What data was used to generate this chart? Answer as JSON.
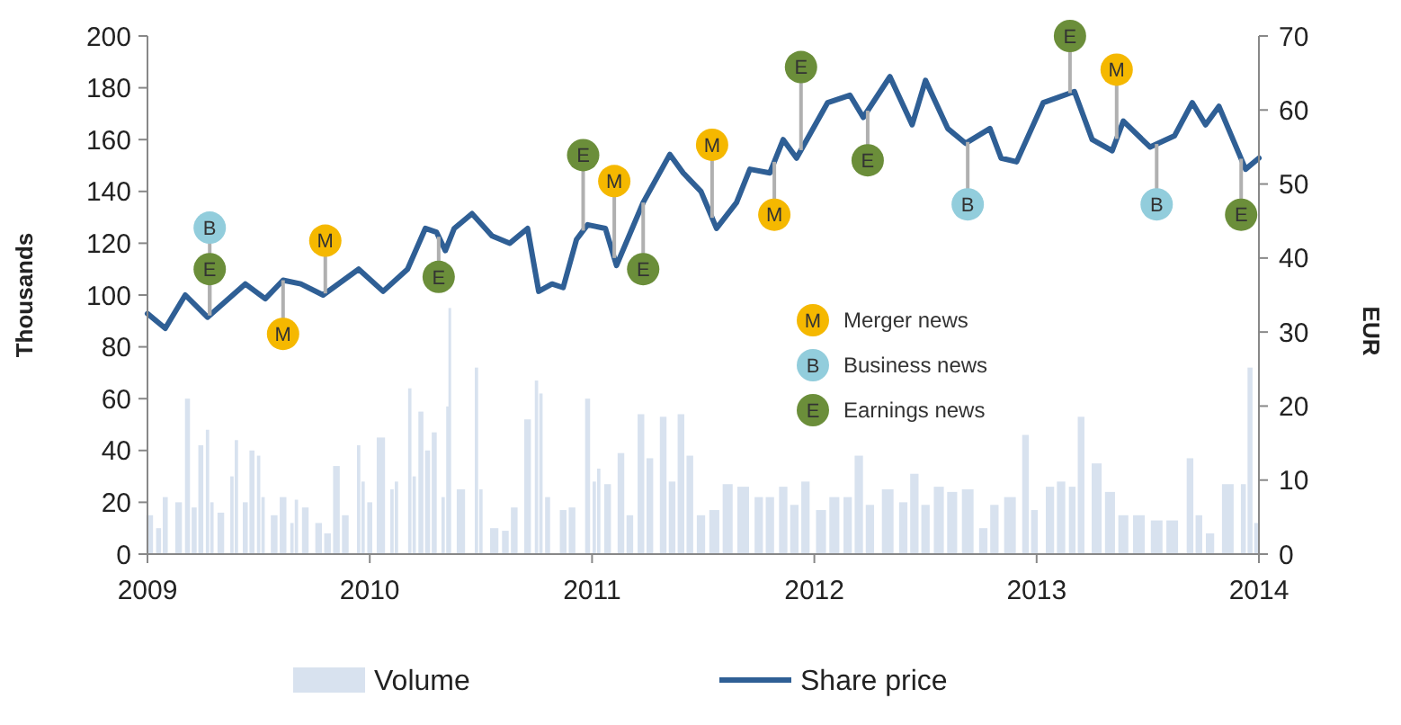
{
  "chart_data": {
    "type": "line",
    "ylabel": "Thousands",
    "y2label": "EUR",
    "xlim": [
      2009,
      2014
    ],
    "xticks": [
      2009,
      2010,
      2011,
      2012,
      2013,
      2014
    ],
    "ylim": [
      0,
      200
    ],
    "yticks": [
      0,
      20,
      40,
      60,
      80,
      100,
      120,
      140,
      160,
      180,
      200
    ],
    "y2lim": [
      0,
      70
    ],
    "y2ticks": [
      0,
      10,
      20,
      30,
      40,
      50,
      60,
      70
    ],
    "legend": "bottom",
    "annotations": [
      {
        "text": "B",
        "x": 2009.28,
        "y": 126
      },
      {
        "text": "E",
        "x": 2009.28,
        "y": 110
      },
      {
        "text": "M",
        "x": 2009.61,
        "y": 85
      },
      {
        "text": "M",
        "x": 2009.8,
        "y": 121
      },
      {
        "text": "E",
        "x": 2010.31,
        "y": 107
      },
      {
        "text": "E",
        "x": 2010.96,
        "y": 154
      },
      {
        "text": "M",
        "x": 2011.1,
        "y": 144
      },
      {
        "text": "E",
        "x": 2011.23,
        "y": 110
      },
      {
        "text": "M",
        "x": 2011.54,
        "y": 158
      },
      {
        "text": "M",
        "x": 2011.82,
        "y": 131
      },
      {
        "text": "E",
        "x": 2011.94,
        "y": 188
      },
      {
        "text": "E",
        "x": 2012.24,
        "y": 152
      },
      {
        "text": "B",
        "x": 2012.69,
        "y": 135
      },
      {
        "text": "E",
        "x": 2013.15,
        "y": 200
      },
      {
        "text": "M",
        "x": 2013.36,
        "y": 187
      },
      {
        "text": "B",
        "x": 2013.54,
        "y": 135
      },
      {
        "text": "E",
        "x": 2013.92,
        "y": 131
      },
      "M",
      "Merger news",
      "B",
      "Business news",
      "E",
      "Earnings news"
    ],
    "series": [
      {
        "name": "Volume",
        "type": "bar",
        "color": "#d8e2ef",
        "x": [
          2009.01,
          2009.05,
          2009.08,
          2009.14,
          2009.18,
          2009.21,
          2009.24,
          2009.27,
          2009.29,
          2009.33,
          2009.38,
          2009.4,
          2009.44,
          2009.47,
          2009.5,
          2009.52,
          2009.57,
          2009.61,
          2009.65,
          2009.67,
          2009.71,
          2009.77,
          2009.81,
          2009.85,
          2009.89,
          2009.95,
          2009.97,
          2010.0,
          2010.05,
          2010.1,
          2010.12,
          2010.18,
          2010.2,
          2010.23,
          2010.26,
          2010.29,
          2010.33,
          2010.35,
          2010.36,
          2010.41,
          2010.48,
          2010.5,
          2010.56,
          2010.61,
          2010.65,
          2010.71,
          2010.75,
          2010.77,
          2010.8,
          2010.87,
          2010.91,
          2010.98,
          2011.01,
          2011.03,
          2011.07,
          2011.13,
          2011.17,
          2011.22,
          2011.26,
          2011.32,
          2011.36,
          2011.4,
          2011.44,
          2011.49,
          2011.55,
          2011.61,
          2011.68,
          2011.75,
          2011.8,
          2011.86,
          2011.91,
          2011.96,
          2012.03,
          2012.09,
          2012.15,
          2012.2,
          2012.25,
          2012.33,
          2012.4,
          2012.45,
          2012.5,
          2012.56,
          2012.62,
          2012.69,
          2012.76,
          2012.81,
          2012.88,
          2012.95,
          2012.99,
          2013.06,
          2013.11,
          2013.16,
          2013.2,
          2013.27,
          2013.33,
          2013.39,
          2013.46,
          2013.54,
          2013.61,
          2013.69,
          2013.73,
          2013.78,
          2013.86,
          2013.93,
          2013.96,
          2013.99
        ],
        "values": [
          15,
          10,
          22,
          20,
          60,
          18,
          42,
          48,
          20,
          16,
          30,
          44,
          20,
          40,
          38,
          22,
          15,
          22,
          12,
          21,
          18,
          12,
          8,
          34,
          15,
          42,
          28,
          20,
          45,
          25,
          28,
          64,
          30,
          55,
          40,
          47,
          22,
          57,
          95,
          25,
          72,
          25,
          10,
          9,
          18,
          52,
          67,
          62,
          22,
          17,
          18,
          60,
          28,
          33,
          27,
          39,
          15,
          54,
          37,
          53,
          28,
          54,
          38,
          15,
          17,
          27,
          26,
          22,
          22,
          26,
          19,
          28,
          17,
          22,
          22,
          38,
          19,
          25,
          20,
          31,
          19,
          26,
          24,
          25,
          10,
          19,
          22,
          46,
          17,
          26,
          28,
          26,
          53,
          35,
          24,
          15,
          15,
          13,
          13,
          37,
          15,
          8,
          27,
          27,
          72,
          12
        ]
      },
      {
        "name": "Share price",
        "axis": "y2",
        "color": "#2f5f95",
        "x": [
          2009.0,
          2009.08,
          2009.17,
          2009.27,
          2009.44,
          2009.53,
          2009.61,
          2009.69,
          2009.79,
          2009.95,
          2010.06,
          2010.17,
          2010.25,
          2010.3,
          2010.34,
          2010.38,
          2010.46,
          2010.55,
          2010.63,
          2010.71,
          2010.76,
          2010.82,
          2010.87,
          2010.93,
          2010.98,
          2011.06,
          2011.11,
          2011.23,
          2011.35,
          2011.41,
          2011.49,
          2011.56,
          2011.65,
          2011.71,
          2011.8,
          2011.86,
          2011.92,
          2012.06,
          2012.16,
          2012.22,
          2012.34,
          2012.44,
          2012.5,
          2012.6,
          2012.68,
          2012.79,
          2012.84,
          2012.91,
          2013.03,
          2013.17,
          2013.25,
          2013.34,
          2013.39,
          2013.51,
          2013.62,
          2013.7,
          2013.76,
          2013.82,
          2013.94,
          2014.0
        ],
        "values": [
          32.5,
          30.5,
          35,
          32,
          36.5,
          34.5,
          37,
          36.5,
          35,
          38.5,
          35.5,
          38.5,
          44,
          43.5,
          41,
          44,
          46,
          43,
          42,
          44,
          35.5,
          36.5,
          36,
          42.5,
          44.5,
          44,
          39,
          47.5,
          54,
          51.5,
          49,
          44,
          47.5,
          52,
          51.5,
          56,
          53.5,
          61,
          62,
          59,
          64.5,
          58,
          64,
          57.5,
          55.5,
          57.5,
          53.5,
          53,
          61,
          62.5,
          56,
          54.5,
          58.5,
          55,
          56.5,
          61,
          58,
          60.5,
          52,
          53.5
        ]
      }
    ]
  }
}
